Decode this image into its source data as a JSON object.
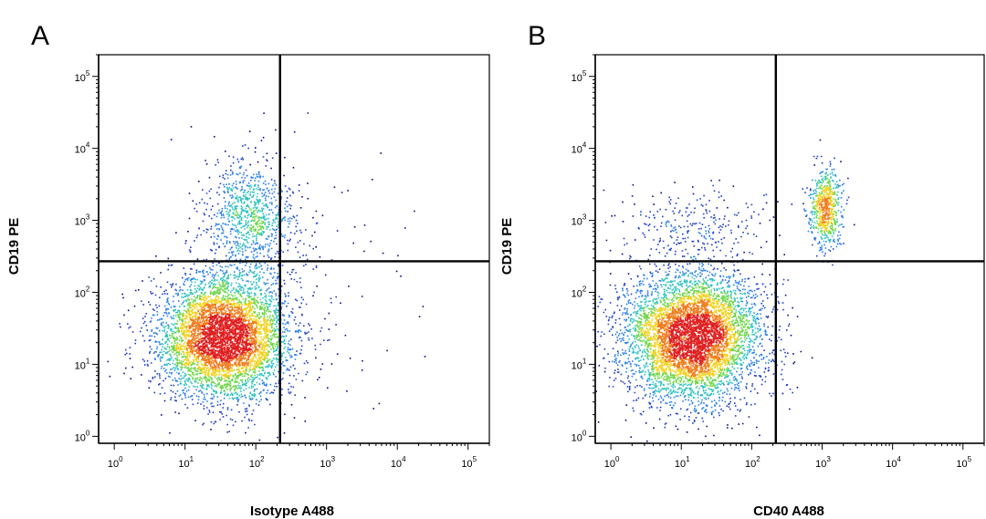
{
  "chart_data": [
    {
      "type": "scatter",
      "panel_label": "A",
      "title": "",
      "xlabel": "Isotype A488",
      "ylabel": "CD19 PE",
      "x_scale": "log",
      "y_scale": "log",
      "xlim": [
        0.6,
        200000
      ],
      "ylim": [
        0.8,
        200000
      ],
      "x_ticks": [
        {
          "base": "10",
          "exp": "0",
          "value": 1
        },
        {
          "base": "10",
          "exp": "1",
          "value": 10
        },
        {
          "base": "10",
          "exp": "2",
          "value": 100
        },
        {
          "base": "10",
          "exp": "3",
          "value": 1000
        },
        {
          "base": "10",
          "exp": "4",
          "value": 10000
        },
        {
          "base": "10",
          "exp": "5",
          "value": 100000
        }
      ],
      "y_ticks": [
        {
          "base": "10",
          "exp": "0",
          "value": 1
        },
        {
          "base": "10",
          "exp": "1",
          "value": 10
        },
        {
          "base": "10",
          "exp": "2",
          "value": 100
        },
        {
          "base": "10",
          "exp": "3",
          "value": 1000
        },
        {
          "base": "10",
          "exp": "4",
          "value": 10000
        },
        {
          "base": "10",
          "exp": "5",
          "value": 100000
        }
      ],
      "gate": {
        "x": 220,
        "y": 270
      },
      "populations": [
        {
          "cx": 35,
          "cy": 25,
          "sdx": 0.45,
          "sdy": 0.42,
          "count": 5200
        },
        {
          "cx": 80,
          "cy": 1200,
          "sdx": 0.32,
          "sdy": 0.4,
          "count": 900
        },
        {
          "cx": 300,
          "cy": 150,
          "sdx": 0.7,
          "sdy": 0.8,
          "count": 160
        }
      ],
      "colormap": [
        "#0a0a8c",
        "#1f3fc4",
        "#2a7fe8",
        "#2fc2c0",
        "#6fd64a",
        "#f2d21f",
        "#f07a1a",
        "#e01e1e"
      ],
      "seed": 7
    },
    {
      "type": "scatter",
      "panel_label": "B",
      "title": "",
      "xlabel": "CD40 A488",
      "ylabel": "CD19 PE",
      "x_scale": "log",
      "y_scale": "log",
      "xlim": [
        0.6,
        200000
      ],
      "ylim": [
        0.8,
        200000
      ],
      "x_ticks": [
        {
          "base": "10",
          "exp": "0",
          "value": 1
        },
        {
          "base": "10",
          "exp": "1",
          "value": 10
        },
        {
          "base": "10",
          "exp": "2",
          "value": 100
        },
        {
          "base": "10",
          "exp": "3",
          "value": 1000
        },
        {
          "base": "10",
          "exp": "4",
          "value": 10000
        },
        {
          "base": "10",
          "exp": "5",
          "value": 100000
        }
      ],
      "y_ticks": [
        {
          "base": "10",
          "exp": "0",
          "value": 1
        },
        {
          "base": "10",
          "exp": "1",
          "value": 10
        },
        {
          "base": "10",
          "exp": "2",
          "value": 100
        },
        {
          "base": "10",
          "exp": "3",
          "value": 1000
        },
        {
          "base": "10",
          "exp": "4",
          "value": 10000
        },
        {
          "base": "10",
          "exp": "5",
          "value": 100000
        }
      ],
      "gate": {
        "x": 220,
        "y": 270
      },
      "populations": [
        {
          "cx": 14,
          "cy": 25,
          "sdx": 0.5,
          "sdy": 0.45,
          "count": 5600
        },
        {
          "cx": 1100,
          "cy": 1500,
          "sdx": 0.11,
          "sdy": 0.28,
          "count": 650
        },
        {
          "cx": 15,
          "cy": 900,
          "sdx": 0.55,
          "sdy": 0.25,
          "count": 250
        }
      ],
      "colormap": [
        "#0a0a8c",
        "#1f3fc4",
        "#2a7fe8",
        "#2fc2c0",
        "#6fd64a",
        "#f2d21f",
        "#f07a1a",
        "#e01e1e"
      ],
      "seed": 13
    }
  ]
}
